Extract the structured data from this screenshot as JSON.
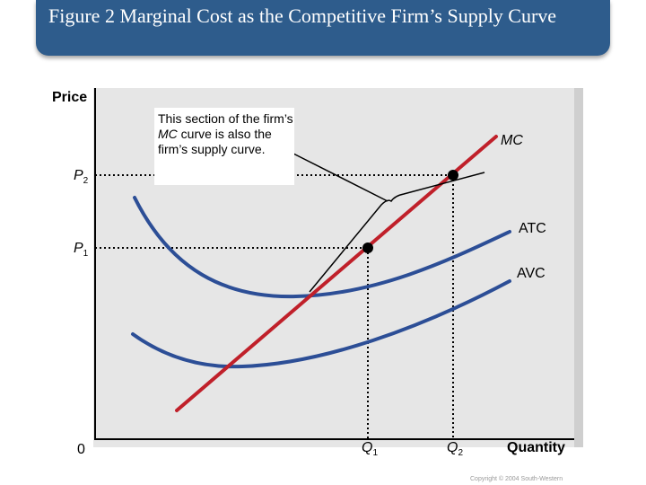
{
  "title": "Figure 2 Marginal Cost as the Competitive Firm’s Supply Curve",
  "axes": {
    "y_label": "Price",
    "x_label": "Quantity",
    "origin": "0"
  },
  "callout": {
    "part1": "This section of the firm’s ",
    "part2": "MC",
    "part3": " curve is also the firm’s supply curve."
  },
  "curves": {
    "mc": "MC",
    "atc": "ATC",
    "avc": "AVC"
  },
  "prices": [
    {
      "letter": "P",
      "sub": "2"
    },
    {
      "letter": "P",
      "sub": "1"
    }
  ],
  "quantities": [
    {
      "letter": "Q",
      "sub": "1"
    },
    {
      "letter": "Q",
      "sub": "2"
    }
  ],
  "colors": {
    "title_bar": "#2e5c8c",
    "mc_curve": "#c0202a",
    "cost_curves": "#2c4e96"
  },
  "copyright": "Copyright © 2004 South-Western"
}
